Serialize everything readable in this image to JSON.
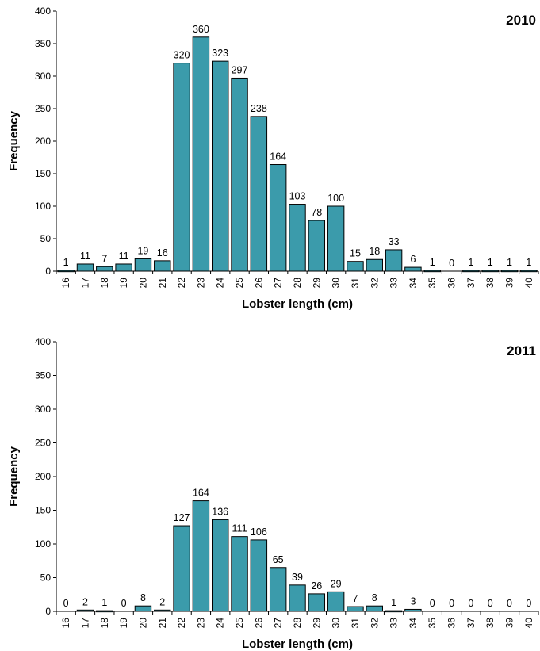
{
  "colors": {
    "bar": "#3b9bab",
    "bar_stroke": "#000000"
  },
  "chart_data": [
    {
      "type": "bar",
      "title": "2010",
      "xlabel": "Lobster length (cm)",
      "ylabel": "Frequency",
      "ylim": [
        0,
        400
      ],
      "yticks": [
        "0",
        "50",
        "100",
        "150",
        "200",
        "250",
        "300",
        "350",
        "400"
      ],
      "categories": [
        "16",
        "17",
        "18",
        "19",
        "20",
        "21",
        "22",
        "23",
        "24",
        "25",
        "26",
        "27",
        "28",
        "29",
        "30",
        "31",
        "32",
        "33",
        "34",
        "35",
        "36",
        "37",
        "38",
        "39",
        "40"
      ],
      "values": [
        1,
        11,
        7,
        11,
        19,
        16,
        320,
        360,
        323,
        297,
        238,
        164,
        103,
        78,
        100,
        15,
        18,
        33,
        6,
        1,
        0,
        1,
        1,
        1,
        1
      ]
    },
    {
      "type": "bar",
      "title": "2011",
      "xlabel": "Lobster length (cm)",
      "ylabel": "Frequency",
      "ylim": [
        0,
        400
      ],
      "yticks": [
        "0",
        "50",
        "100",
        "150",
        "200",
        "250",
        "300",
        "350",
        "400"
      ],
      "categories": [
        "16",
        "17",
        "18",
        "19",
        "20",
        "21",
        "22",
        "23",
        "24",
        "25",
        "26",
        "27",
        "28",
        "29",
        "30",
        "31",
        "32",
        "33",
        "34",
        "35",
        "36",
        "37",
        "38",
        "39",
        "40"
      ],
      "values": [
        0,
        2,
        1,
        0,
        8,
        2,
        127,
        164,
        136,
        111,
        106,
        65,
        39,
        26,
        29,
        7,
        8,
        1,
        3,
        0,
        0,
        0,
        0,
        0,
        0
      ]
    }
  ]
}
